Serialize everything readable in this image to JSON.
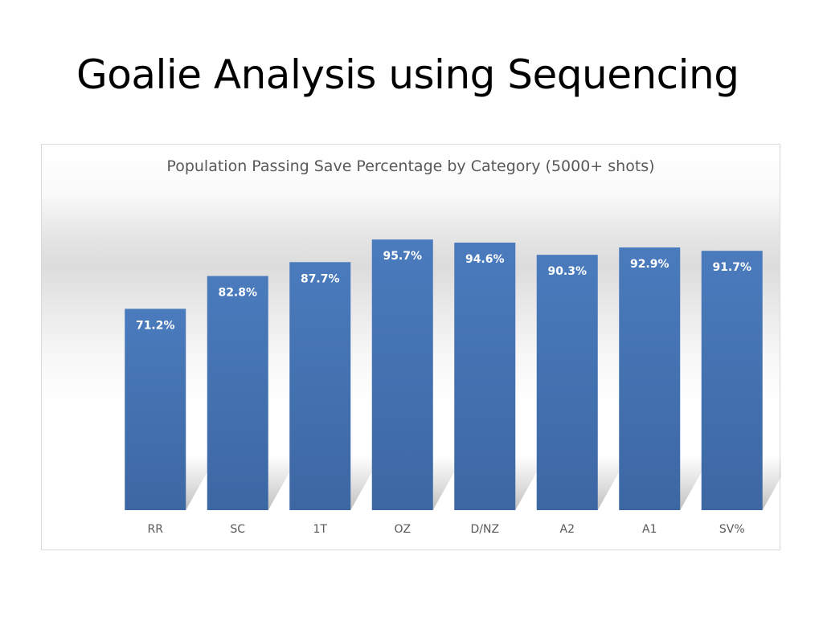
{
  "slide": {
    "title": "Goalie Analysis using Sequencing"
  },
  "chart_data": {
    "type": "bar",
    "title": "Population Passing Save Percentage by Category (5000+ shots)",
    "categories": [
      "RR",
      "SC",
      "1T",
      "OZ",
      "D/NZ",
      "A2",
      "A1",
      "SV%"
    ],
    "values": [
      71.2,
      82.8,
      87.7,
      95.7,
      94.6,
      90.3,
      92.9,
      91.7
    ],
    "data_labels": [
      "71.2%",
      "82.8%",
      "87.7%",
      "95.7%",
      "94.6%",
      "90.3%",
      "92.9%",
      "91.7%"
    ],
    "ylim": [
      0,
      100
    ],
    "grid": false,
    "legend": "none",
    "bar_color": "#4a7bbd",
    "bar_color_dark": "#3d67a3",
    "label_color": "#ffffff",
    "tick_label_color": "#595959"
  }
}
